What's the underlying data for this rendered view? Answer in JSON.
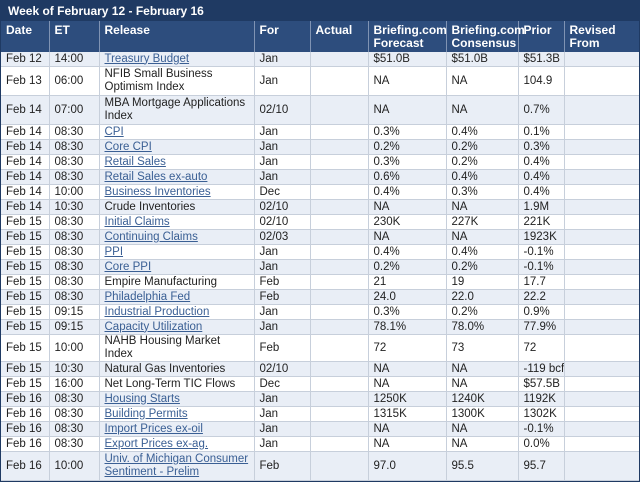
{
  "title": "Week of February 12 - February 16",
  "headers": {
    "date": "Date",
    "et": "ET",
    "release": "Release",
    "for": "For",
    "actual": "Actual",
    "forecast": "Briefing.com Forecast",
    "consensus": "Briefing.com Consensus",
    "prior": "Prior",
    "revised": "Revised From"
  },
  "rows": [
    {
      "date": "Feb 12",
      "et": "14:00",
      "release": "Treasury Budget",
      "link": true,
      "for": "Jan",
      "actual": "",
      "forecast": "$51.0B",
      "consensus": "$51.0B",
      "prior": "$51.3B",
      "revised": ""
    },
    {
      "date": "Feb 13",
      "et": "06:00",
      "release": "NFIB Small Business Optimism Index",
      "link": false,
      "for": "Jan",
      "actual": "",
      "forecast": "NA",
      "consensus": "NA",
      "prior": "104.9",
      "revised": ""
    },
    {
      "date": "Feb 14",
      "et": "07:00",
      "release": "MBA Mortgage Applications Index",
      "link": false,
      "for": "02/10",
      "actual": "",
      "forecast": "NA",
      "consensus": "NA",
      "prior": "0.7%",
      "revised": ""
    },
    {
      "date": "Feb 14",
      "et": "08:30",
      "release": "CPI",
      "link": true,
      "for": "Jan",
      "actual": "",
      "forecast": "0.3%",
      "consensus": "0.4%",
      "prior": "0.1%",
      "revised": ""
    },
    {
      "date": "Feb 14",
      "et": "08:30",
      "release": "Core CPI",
      "link": true,
      "for": "Jan",
      "actual": "",
      "forecast": "0.2%",
      "consensus": "0.2%",
      "prior": "0.3%",
      "revised": ""
    },
    {
      "date": "Feb 14",
      "et": "08:30",
      "release": "Retail Sales",
      "link": true,
      "for": "Jan",
      "actual": "",
      "forecast": "0.3%",
      "consensus": "0.2%",
      "prior": "0.4%",
      "revised": ""
    },
    {
      "date": "Feb 14",
      "et": "08:30",
      "release": "Retail Sales ex-auto",
      "link": true,
      "for": "Jan",
      "actual": "",
      "forecast": "0.6%",
      "consensus": "0.4%",
      "prior": "0.4%",
      "revised": ""
    },
    {
      "date": "Feb 14",
      "et": "10:00",
      "release": "Business Inventories",
      "link": true,
      "for": "Dec",
      "actual": "",
      "forecast": "0.4%",
      "consensus": "0.3%",
      "prior": "0.4%",
      "revised": ""
    },
    {
      "date": "Feb 14",
      "et": "10:30",
      "release": "Crude Inventories",
      "link": false,
      "for": "02/10",
      "actual": "",
      "forecast": "NA",
      "consensus": "NA",
      "prior": "1.9M",
      "revised": ""
    },
    {
      "date": "Feb 15",
      "et": "08:30",
      "release": "Initial Claims",
      "link": true,
      "for": "02/10",
      "actual": "",
      "forecast": "230K",
      "consensus": "227K",
      "prior": "221K",
      "revised": ""
    },
    {
      "date": "Feb 15",
      "et": "08:30",
      "release": "Continuing Claims",
      "link": true,
      "for": "02/03",
      "actual": "",
      "forecast": "NA",
      "consensus": "NA",
      "prior": "1923K",
      "revised": ""
    },
    {
      "date": "Feb 15",
      "et": "08:30",
      "release": "PPI",
      "link": true,
      "for": "Jan",
      "actual": "",
      "forecast": "0.4%",
      "consensus": "0.4%",
      "prior": "-0.1%",
      "revised": ""
    },
    {
      "date": "Feb 15",
      "et": "08:30",
      "release": "Core PPI",
      "link": true,
      "for": "Jan",
      "actual": "",
      "forecast": "0.2%",
      "consensus": "0.2%",
      "prior": "-0.1%",
      "revised": ""
    },
    {
      "date": "Feb 15",
      "et": "08:30",
      "release": "Empire Manufacturing",
      "link": false,
      "for": "Feb",
      "actual": "",
      "forecast": "21",
      "consensus": "19",
      "prior": "17.7",
      "revised": ""
    },
    {
      "date": "Feb 15",
      "et": "08:30",
      "release": "Philadelphia Fed",
      "link": true,
      "for": "Feb",
      "actual": "",
      "forecast": "24.0",
      "consensus": "22.0",
      "prior": "22.2",
      "revised": ""
    },
    {
      "date": "Feb 15",
      "et": "09:15",
      "release": "Industrial Production",
      "link": true,
      "for": "Jan",
      "actual": "",
      "forecast": "0.3%",
      "consensus": "0.2%",
      "prior": "0.9%",
      "revised": ""
    },
    {
      "date": "Feb 15",
      "et": "09:15",
      "release": "Capacity Utilization",
      "link": true,
      "for": "Jan",
      "actual": "",
      "forecast": "78.1%",
      "consensus": "78.0%",
      "prior": "77.9%",
      "revised": ""
    },
    {
      "date": "Feb 15",
      "et": "10:00",
      "release": "NAHB Housing Market Index",
      "link": false,
      "for": "Feb",
      "actual": "",
      "forecast": "72",
      "consensus": "73",
      "prior": "72",
      "revised": ""
    },
    {
      "date": "Feb 15",
      "et": "10:30",
      "release": "Natural Gas Inventories",
      "link": false,
      "for": "02/10",
      "actual": "",
      "forecast": "NA",
      "consensus": "NA",
      "prior": "-119 bcf",
      "revised": ""
    },
    {
      "date": "Feb 15",
      "et": "16:00",
      "release": "Net Long-Term TIC Flows",
      "link": false,
      "for": "Dec",
      "actual": "",
      "forecast": "NA",
      "consensus": "NA",
      "prior": "$57.5B",
      "revised": ""
    },
    {
      "date": "Feb 16",
      "et": "08:30",
      "release": "Housing Starts",
      "link": true,
      "for": "Jan",
      "actual": "",
      "forecast": "1250K",
      "consensus": "1240K",
      "prior": "1192K",
      "revised": ""
    },
    {
      "date": "Feb 16",
      "et": "08:30",
      "release": "Building Permits",
      "link": true,
      "for": "Jan",
      "actual": "",
      "forecast": "1315K",
      "consensus": "1300K",
      "prior": "1302K",
      "revised": ""
    },
    {
      "date": "Feb 16",
      "et": "08:30",
      "release": "Import Prices ex-oil",
      "link": true,
      "for": "Jan",
      "actual": "",
      "forecast": "NA",
      "consensus": "NA",
      "prior": "-0.1%",
      "revised": ""
    },
    {
      "date": "Feb 16",
      "et": "08:30",
      "release": "Export Prices ex-ag.",
      "link": true,
      "for": "Jan",
      "actual": "",
      "forecast": "NA",
      "consensus": "NA",
      "prior": "0.0%",
      "revised": ""
    },
    {
      "date": "Feb 16",
      "et": "10:00",
      "release": "Univ. of Michigan Consumer Sentiment - Prelim",
      "link": true,
      "for": "Feb",
      "actual": "",
      "forecast": "97.0",
      "consensus": "95.5",
      "prior": "95.7",
      "revised": ""
    }
  ]
}
